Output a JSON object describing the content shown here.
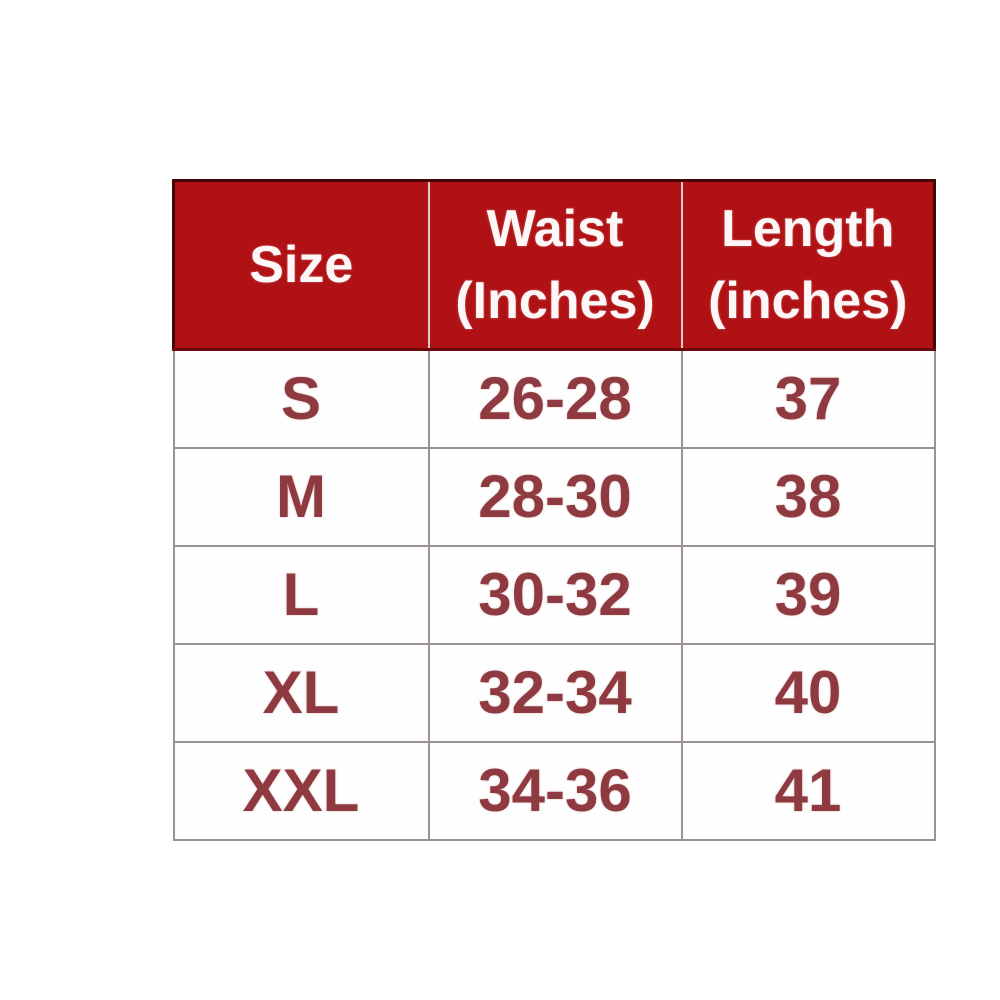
{
  "chart_data": {
    "type": "table",
    "columns": [
      "Size",
      "Waist (Inches)",
      "Length (inches)"
    ],
    "rows": [
      [
        "S",
        "26-28",
        "37"
      ],
      [
        "M",
        "28-30",
        "38"
      ],
      [
        "L",
        "30-32",
        "39"
      ],
      [
        "XL",
        "32-34",
        "40"
      ],
      [
        "XXL",
        "34-36",
        "41"
      ]
    ]
  },
  "header": {
    "size_line1": "Size",
    "waist_line1": "Waist",
    "waist_line2": "(Inches)",
    "length_line1": "Length",
    "length_line2": "(inches)"
  },
  "colors": {
    "header_bg": "#b01115",
    "header_text": "#ffffff",
    "header_outline": "#460708",
    "body_text": "#8f3a40",
    "grid_line": "#9a9196",
    "background": "#ffffff"
  }
}
